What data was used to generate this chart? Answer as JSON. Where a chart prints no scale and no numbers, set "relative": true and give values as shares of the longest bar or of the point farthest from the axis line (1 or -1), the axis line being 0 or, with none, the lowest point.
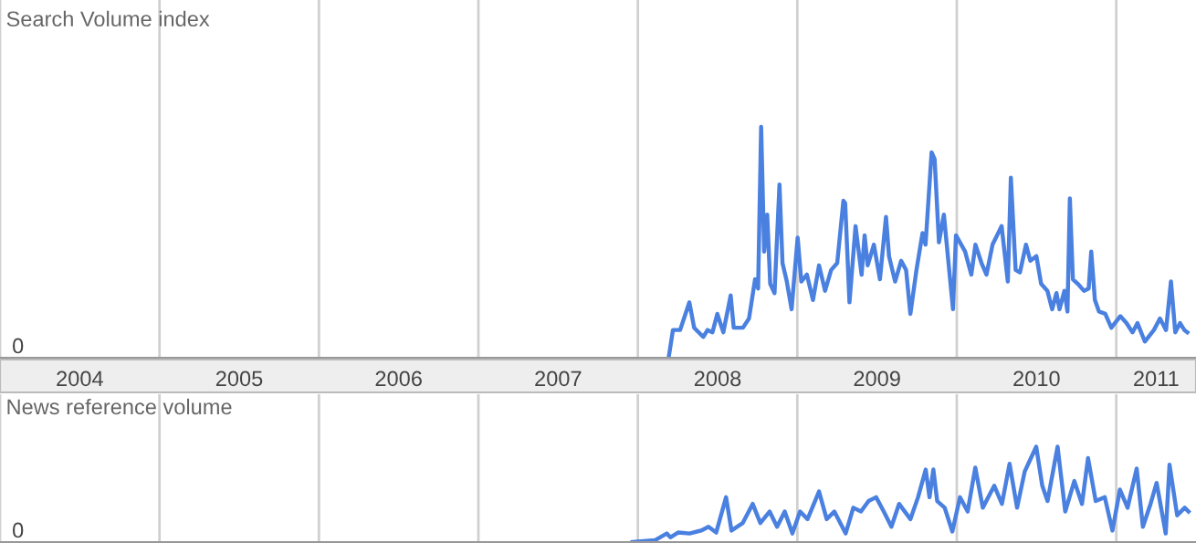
{
  "chart_data": [
    {
      "type": "line",
      "relative": true,
      "ylabel": "Search Volume index",
      "annotations": [
        "0"
      ],
      "xlim": [
        2004,
        2011.5
      ],
      "tick_labels": "x",
      "grid": "x",
      "xticks": [
        {
          "value": 2004,
          "label": null
        },
        {
          "value": 2004.5,
          "label": "2004"
        },
        {
          "value": 2005,
          "label": null
        },
        {
          "value": 2005.5,
          "label": "2005"
        },
        {
          "value": 2006,
          "label": null
        },
        {
          "value": 2006.5,
          "label": "2006"
        },
        {
          "value": 2007,
          "label": null
        },
        {
          "value": 2007.5,
          "label": "2007"
        },
        {
          "value": 2008,
          "label": null
        },
        {
          "value": 2008.5,
          "label": "2008"
        },
        {
          "value": 2009,
          "label": null
        },
        {
          "value": 2009.5,
          "label": "2009"
        },
        {
          "value": 2010,
          "label": null
        },
        {
          "value": 2010.5,
          "label": "2010"
        },
        {
          "value": 2011,
          "label": null
        },
        {
          "value": 2011.25,
          "label": "2011"
        }
      ],
      "series": [
        {
          "color": "#4a80e0",
          "x": [
            2008.193,
            2008.22,
            2008.265,
            2008.323,
            2008.353,
            2008.41,
            2008.437,
            2008.468,
            2008.498,
            2008.536,
            2008.582,
            2008.601,
            2008.659,
            2008.697,
            2008.735,
            2008.754,
            2008.773,
            2008.792,
            2008.811,
            2008.83,
            2008.857,
            2008.888,
            2008.907,
            2008.934,
            2008.964,
            2009.002,
            2009.025,
            2009.06,
            2009.098,
            2009.136,
            2009.174,
            2009.212,
            2009.25,
            2009.289,
            2009.3,
            2009.327,
            2009.365,
            2009.403,
            2009.422,
            2009.441,
            2009.48,
            2009.518,
            2009.556,
            2009.575,
            2009.613,
            2009.651,
            2009.682,
            2009.709,
            2009.747,
            2009.785,
            2009.804,
            2009.842,
            2009.861,
            2009.888,
            2009.919,
            2009.976,
            2009.995,
            2010.052,
            2010.091,
            2010.117,
            2010.155,
            2010.186,
            2010.224,
            2010.281,
            2010.32,
            2010.339,
            2010.369,
            2010.396,
            2010.434,
            2010.461,
            2010.499,
            2010.529,
            2010.568,
            2010.598,
            2010.625,
            2010.644,
            2010.675,
            2010.694,
            2010.709,
            2010.728,
            2010.759,
            2010.797,
            2010.827,
            2010.843,
            2010.866,
            2010.892,
            2010.931,
            2010.969,
            2011.026,
            2011.064,
            2011.102,
            2011.133,
            2011.179,
            2011.236,
            2011.274,
            2011.312,
            2011.343,
            2011.37,
            2011.4,
            2011.427,
            2011.446
          ],
          "values": [
            0,
            0.12,
            0.12,
            0.24,
            0.13,
            0.09,
            0.12,
            0.11,
            0.19,
            0.11,
            0.27,
            0.13,
            0.13,
            0.17,
            0.34,
            0.3,
            1.0,
            0.46,
            0.62,
            0.32,
            0.28,
            0.75,
            0.41,
            0.33,
            0.21,
            0.52,
            0.33,
            0.36,
            0.25,
            0.4,
            0.29,
            0.38,
            0.41,
            0.68,
            0.67,
            0.24,
            0.57,
            0.36,
            0.53,
            0.4,
            0.49,
            0.34,
            0.61,
            0.44,
            0.33,
            0.42,
            0.38,
            0.19,
            0.38,
            0.54,
            0.49,
            0.89,
            0.86,
            0.5,
            0.62,
            0.21,
            0.53,
            0.46,
            0.36,
            0.49,
            0.41,
            0.36,
            0.49,
            0.57,
            0.33,
            0.78,
            0.38,
            0.37,
            0.49,
            0.42,
            0.44,
            0.32,
            0.29,
            0.21,
            0.28,
            0.21,
            0.29,
            0.2,
            0.69,
            0.34,
            0.32,
            0.29,
            0.3,
            0.46,
            0.25,
            0.2,
            0.19,
            0.13,
            0.18,
            0.15,
            0.11,
            0.15,
            0.07,
            0.12,
            0.17,
            0.12,
            0.33,
            0.11,
            0.15,
            0.12,
            0.11
          ]
        }
      ]
    },
    {
      "type": "line",
      "relative": true,
      "ylabel": "News reference volume",
      "annotations": [
        "0"
      ],
      "xlim": [
        2004,
        2011.5
      ],
      "tick_labels": false,
      "grid": "x",
      "xticks": [
        {
          "value": 2004,
          "label": null
        },
        {
          "value": 2005,
          "label": null
        },
        {
          "value": 2006,
          "label": null
        },
        {
          "value": 2007,
          "label": null
        },
        {
          "value": 2008,
          "label": null
        },
        {
          "value": 2009,
          "label": null
        },
        {
          "value": 2010,
          "label": null
        },
        {
          "value": 2011,
          "label": null
        }
      ],
      "series": [
        {
          "color": "#4a80e0",
          "x": [
            2007.966,
            2008.109,
            2008.181,
            2008.204,
            2008.252,
            2008.324,
            2008.396,
            2008.443,
            2008.491,
            2008.553,
            2008.587,
            2008.658,
            2008.72,
            2008.768,
            2008.826,
            2008.873,
            2008.921,
            2008.969,
            2009.017,
            2009.064,
            2009.136,
            2009.184,
            2009.232,
            2009.303,
            2009.351,
            2009.399,
            2009.447,
            2009.494,
            2009.542,
            2009.59,
            2009.638,
            2009.709,
            2009.757,
            2009.805,
            2009.829,
            2009.853,
            2009.877,
            2009.924,
            2009.972,
            2010.02,
            2010.068,
            2010.116,
            2010.163,
            2010.235,
            2010.283,
            2010.331,
            2010.378,
            2010.426,
            2010.498,
            2010.536,
            2010.569,
            2010.632,
            2010.68,
            2010.737,
            2010.785,
            2010.823,
            2010.871,
            2010.928,
            2010.976,
            2011.023,
            2011.071,
            2011.128,
            2011.167,
            2011.215,
            2011.253,
            2011.31,
            2011.334,
            2011.382,
            2011.429,
            2011.453
          ],
          "values": [
            0,
            0.02,
            0.09,
            0.05,
            0.1,
            0.09,
            0.12,
            0.16,
            0.1,
            0.47,
            0.12,
            0.2,
            0.4,
            0.2,
            0.32,
            0.16,
            0.32,
            0.09,
            0.32,
            0.24,
            0.53,
            0.24,
            0.32,
            0.09,
            0.36,
            0.32,
            0.43,
            0.47,
            0.32,
            0.16,
            0.4,
            0.24,
            0.47,
            0.76,
            0.47,
            0.76,
            0.43,
            0.36,
            0.11,
            0.47,
            0.32,
            0.78,
            0.36,
            0.59,
            0.4,
            0.82,
            0.36,
            0.74,
            1.0,
            0.59,
            0.43,
            1.0,
            0.32,
            0.64,
            0.4,
            0.88,
            0.43,
            0.47,
            0.12,
            0.55,
            0.36,
            0.77,
            0.16,
            0.4,
            0.62,
            0.09,
            0.81,
            0.28,
            0.36,
            0.32
          ]
        }
      ]
    }
  ]
}
